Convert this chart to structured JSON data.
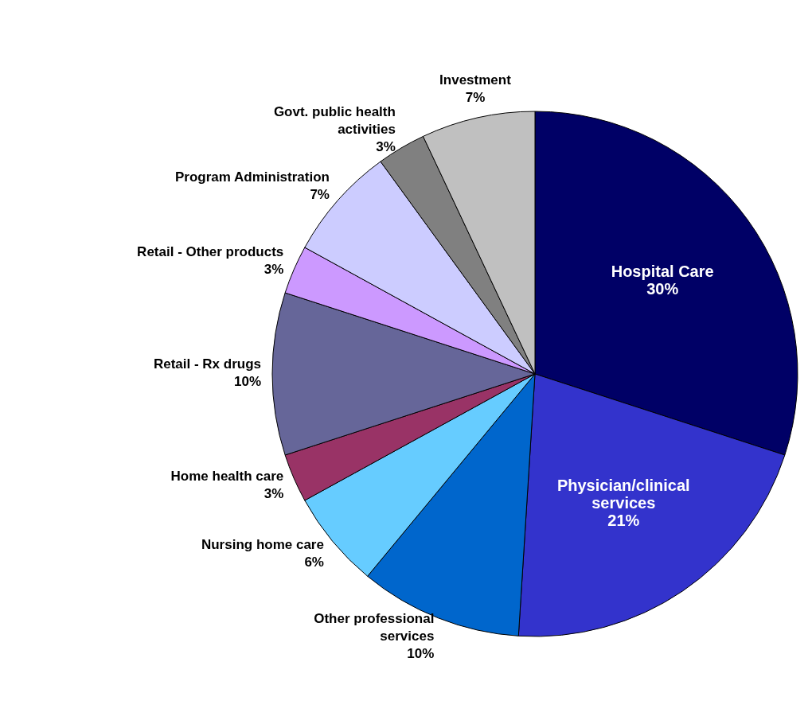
{
  "chart_data": {
    "type": "pie",
    "categories": [
      "Hospital Care",
      "Physician/clinical services",
      "Other professional services",
      "Nursing home care",
      "Home health care",
      "Retail - Rx drugs",
      "Retail - Other products",
      "Program Administration",
      "Govt. public health activities",
      "Investment"
    ],
    "values": [
      30,
      21,
      10,
      6,
      3,
      10,
      3,
      7,
      3,
      7
    ],
    "colors": [
      "#000066",
      "#3333cc",
      "#0066cc",
      "#66ccff",
      "#993366",
      "#666699",
      "#cc99ff",
      "#ccccff",
      "#808080",
      "#c0c0c0"
    ],
    "value_labels": [
      "30%",
      "21%",
      "10%",
      "6%",
      "3%",
      "10%",
      "3%",
      "7%",
      "3%",
      "7%"
    ]
  }
}
